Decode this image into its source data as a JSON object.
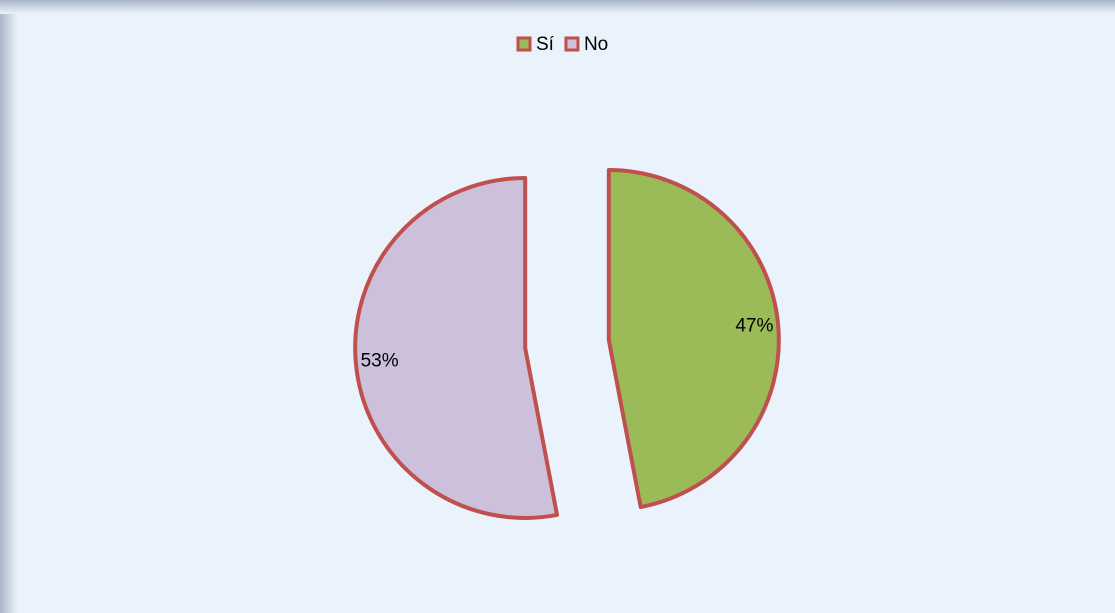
{
  "chart_data": {
    "type": "pie",
    "categories": [
      "Sí",
      "No"
    ],
    "values": [
      47,
      53
    ],
    "value_labels": [
      "47%",
      "53%"
    ],
    "colors": [
      "#9bbb59",
      "#ccc0da"
    ],
    "edge_color": "#c0504d",
    "legend": "top"
  }
}
